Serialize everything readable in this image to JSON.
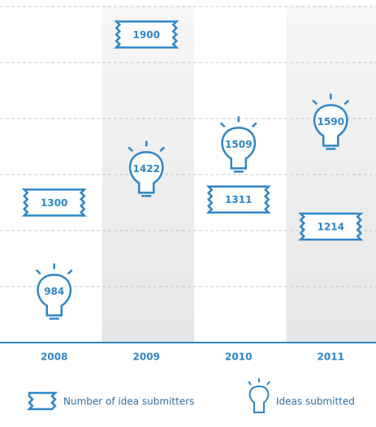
{
  "chart_data": {
    "type": "pictogram",
    "categories": [
      "2008",
      "2009",
      "2010",
      "2011"
    ],
    "series": [
      {
        "name": "Number of idea submitters",
        "color": "#2e86c6",
        "values": [
          1300,
          1900,
          1311,
          1214
        ]
      },
      {
        "name": "Ideas submitted",
        "color": "#2e86c6",
        "values": [
          984,
          1422,
          1509,
          1590
        ]
      }
    ],
    "ylim": [
      800,
      2000
    ],
    "yticks": [
      1000,
      1200,
      1400,
      1600,
      1800,
      2000
    ],
    "grid": true
  }
}
